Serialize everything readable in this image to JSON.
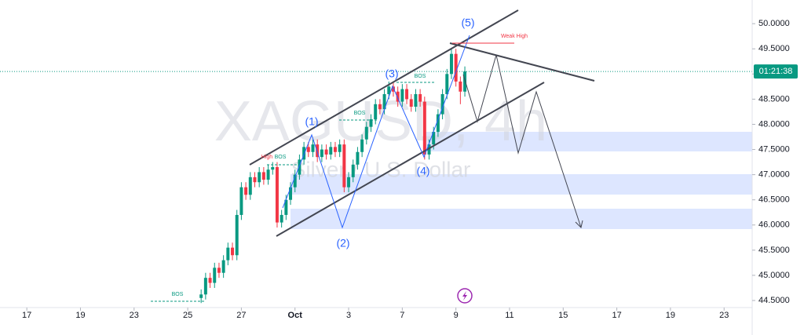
{
  "chart_data": {
    "type": "candlestick",
    "title": "XAGUSD, 4h",
    "subtitle": "Silver / U.S. Dollar",
    "up_color": "#089981",
    "down_color": "#f23645",
    "grid": false,
    "countdown": "01:21:38",
    "last_price": 49.05,
    "annotations": [
      "(1)",
      "(2)",
      "(3)",
      "(4)",
      "(5)",
      "BOS",
      "BOS",
      "BOS",
      "BOS",
      "High",
      "Weak High"
    ],
    "xlim": [
      -6,
      160
    ],
    "xticks": [
      {
        "value": 0,
        "label": "17"
      },
      {
        "value": 12,
        "label": "19"
      },
      {
        "value": 24,
        "label": "23"
      },
      {
        "value": 36,
        "label": "25"
      },
      {
        "value": 48,
        "label": "27"
      },
      {
        "value": 60,
        "label": "Oct"
      },
      {
        "value": 72,
        "label": "3"
      },
      {
        "value": 84,
        "label": "7"
      },
      {
        "value": 96,
        "label": "9"
      },
      {
        "value": 108,
        "label": "11"
      },
      {
        "value": 120,
        "label": "15"
      },
      {
        "value": 132,
        "label": "17"
      },
      {
        "value": 144,
        "label": "19"
      },
      {
        "value": 156,
        "label": "23"
      }
    ],
    "ylim": [
      44.36,
      50.47
    ],
    "yticks": [
      {
        "value": 44.5,
        "label": "44.5000"
      },
      {
        "value": 45,
        "label": "45.0000"
      },
      {
        "value": 45.5,
        "label": "45.5000"
      },
      {
        "value": 46,
        "label": "46.0000"
      },
      {
        "value": 46.5,
        "label": "46.5000"
      },
      {
        "value": 47,
        "label": "47.0000"
      },
      {
        "value": 47.5,
        "label": "47.5000"
      },
      {
        "value": 48,
        "label": "48.0000"
      },
      {
        "value": 48.5,
        "label": "48.5000"
      },
      {
        "value": 49,
        "label": "49.0000"
      },
      {
        "value": 49.5,
        "label": "49.5000"
      },
      {
        "value": 50,
        "label": "50.0000"
      }
    ],
    "x": [
      39,
      40,
      41,
      42,
      43,
      44,
      45,
      46,
      47,
      48,
      49,
      50,
      51,
      52,
      53,
      54,
      55,
      56,
      57,
      58,
      59,
      60,
      61,
      62,
      63,
      64,
      65,
      66,
      67,
      68,
      69,
      70,
      71,
      72,
      73,
      74,
      75,
      76,
      77,
      78,
      79,
      80,
      81,
      82,
      83,
      84,
      85,
      86,
      87,
      88,
      89,
      90,
      91,
      92,
      93,
      94,
      95,
      96,
      97,
      98
    ],
    "open": [
      44.55,
      44.62,
      44.95,
      44.85,
      45.15,
      45.05,
      45.3,
      45.55,
      45.4,
      46.2,
      46.75,
      46.6,
      46.95,
      46.85,
      47.05,
      46.9,
      47.1,
      47.15,
      46.05,
      46.2,
      46.5,
      46.75,
      47.0,
      47.3,
      47.55,
      47.45,
      47.6,
      47.35,
      47.5,
      47.4,
      47.55,
      47.45,
      47.6,
      46.75,
      46.95,
      47.2,
      47.45,
      47.7,
      47.95,
      48.1,
      48.4,
      48.3,
      48.6,
      48.75,
      48.65,
      48.45,
      48.7,
      48.5,
      48.35,
      48.6,
      48.45,
      47.4,
      47.6,
      47.85,
      48.2,
      48.6,
      49.0,
      49.4,
      48.85,
      48.65
    ],
    "high": [
      44.72,
      45.05,
      45.05,
      45.25,
      45.25,
      45.4,
      45.65,
      45.65,
      46.3,
      46.85,
      46.85,
      47.05,
      47.05,
      47.15,
      47.15,
      47.2,
      47.25,
      47.25,
      46.3,
      46.6,
      46.85,
      47.1,
      47.4,
      47.65,
      47.65,
      47.7,
      47.7,
      47.6,
      47.6,
      47.65,
      47.65,
      47.7,
      47.7,
      47.05,
      47.3,
      47.55,
      47.8,
      48.05,
      48.2,
      48.5,
      48.5,
      48.7,
      48.85,
      48.85,
      48.75,
      48.8,
      48.8,
      48.6,
      48.7,
      48.7,
      48.55,
      47.7,
      47.95,
      48.3,
      48.7,
      49.1,
      49.5,
      49.5,
      48.95,
      49.15
    ],
    "low": [
      44.45,
      44.52,
      44.75,
      44.75,
      44.95,
      44.95,
      45.2,
      45.3,
      45.3,
      46.1,
      46.5,
      46.5,
      46.75,
      46.75,
      46.8,
      46.8,
      47.0,
      45.95,
      45.95,
      46.1,
      46.4,
      46.65,
      46.9,
      47.2,
      47.35,
      47.35,
      47.25,
      47.25,
      47.3,
      47.3,
      47.35,
      47.35,
      46.65,
      46.65,
      46.85,
      47.1,
      47.35,
      47.6,
      47.85,
      48.0,
      48.2,
      48.2,
      48.5,
      48.55,
      48.35,
      48.35,
      48.4,
      48.25,
      48.25,
      48.35,
      47.3,
      47.3,
      47.5,
      47.75,
      48.1,
      48.5,
      48.9,
      48.75,
      48.4,
      48.55
    ],
    "close": [
      44.62,
      44.95,
      44.85,
      45.15,
      45.05,
      45.3,
      45.55,
      45.4,
      46.2,
      46.75,
      46.6,
      46.95,
      46.85,
      47.05,
      46.9,
      47.1,
      47.15,
      46.05,
      46.2,
      46.5,
      46.75,
      47.0,
      47.3,
      47.55,
      47.45,
      47.6,
      47.35,
      47.5,
      47.4,
      47.55,
      47.45,
      47.6,
      46.75,
      46.95,
      47.2,
      47.45,
      47.7,
      47.95,
      48.1,
      48.4,
      48.3,
      48.6,
      48.75,
      48.65,
      48.45,
      48.7,
      48.5,
      48.35,
      48.6,
      48.45,
      47.4,
      47.6,
      47.85,
      48.2,
      48.6,
      49.0,
      49.4,
      48.85,
      48.65,
      49.05
    ]
  }
}
